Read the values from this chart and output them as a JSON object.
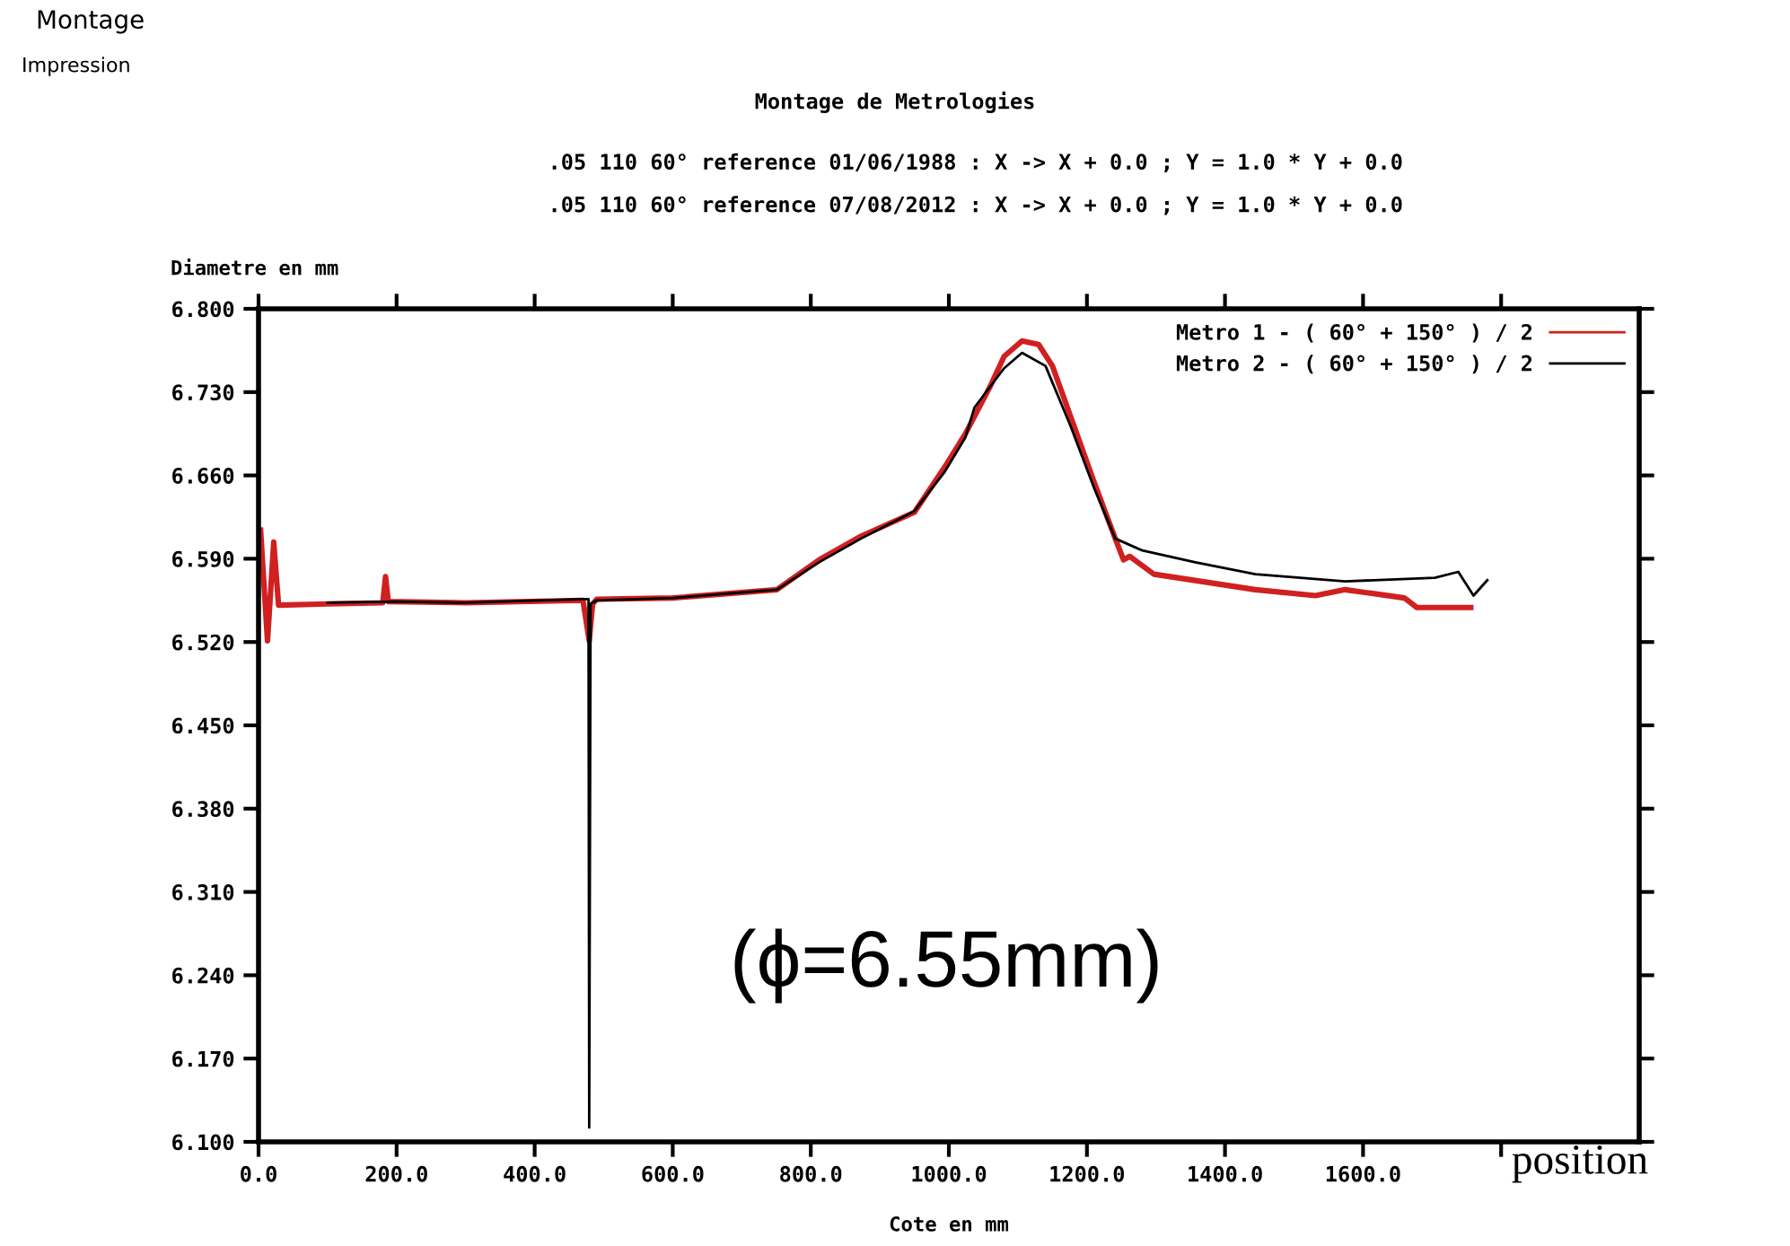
{
  "chart_data": {
    "type": "line",
    "title": "Montage de Metrologies",
    "subtitle": ".05 110 60° reference 01/06/1988 : X -> X + 0.0 ; Y = 1.0 * Y + 0.0\n\n.05 110 60° reference 07/08/2012 : X -> X + 0.0 ; Y = 1.0 * Y + 0.0",
    "xlabel": "Cote en mm",
    "ylabel": "Diametre en mm",
    "annotations": [
      "Montage",
      "Impression",
      "(ϕ=6.55mm)",
      "position"
    ],
    "xlim": [
      0,
      2000
    ],
    "xticks": [
      {
        "value": 0,
        "label": "0.0"
      },
      {
        "value": 200,
        "label": "200.0"
      },
      {
        "value": 400,
        "label": "400.0"
      },
      {
        "value": 600,
        "label": "600.0"
      },
      {
        "value": 800,
        "label": "800.0"
      },
      {
        "value": 1000,
        "label": "1000.0"
      },
      {
        "value": 1200,
        "label": "1200.0"
      },
      {
        "value": 1400,
        "label": "1400.0"
      },
      {
        "value": 1600,
        "label": "1600.0"
      },
      {
        "value": 1800,
        "label": null
      }
    ],
    "ylim": [
      6.1,
      6.8
    ],
    "yticks": [
      {
        "value": 6.1,
        "label": "6.100"
      },
      {
        "value": 6.17,
        "label": "6.170"
      },
      {
        "value": 6.24,
        "label": "6.240"
      },
      {
        "value": 6.31,
        "label": "6.310"
      },
      {
        "value": 6.38,
        "label": "6.380"
      },
      {
        "value": 6.45,
        "label": "6.450"
      },
      {
        "value": 6.52,
        "label": "6.520"
      },
      {
        "value": 6.59,
        "label": "6.590"
      },
      {
        "value": 6.66,
        "label": "6.660"
      },
      {
        "value": 6.73,
        "label": "6.730"
      },
      {
        "value": 6.8,
        "label": "6.800"
      }
    ],
    "legend": "top right",
    "line_style": "solid",
    "series": [
      {
        "name": "Metro 1 - ( 60° + 150° ) / 2",
        "color": "#d02020",
        "x": [
          3,
          13,
          22,
          29,
          100,
          180,
          184,
          188,
          300,
          470,
          479,
          484,
          490,
          600,
          751,
          812,
          873,
          950,
          994,
          1024,
          1060,
          1080,
          1106,
          1130,
          1150,
          1176,
          1210,
          1241,
          1253,
          1262,
          1297,
          1444,
          1531,
          1574,
          1660,
          1678,
          1756
        ],
        "values": [
          6.614,
          6.521,
          6.604,
          6.551,
          6.552,
          6.553,
          6.575,
          6.554,
          6.553,
          6.555,
          6.521,
          6.552,
          6.556,
          6.557,
          6.564,
          6.589,
          6.609,
          6.629,
          6.667,
          6.695,
          6.735,
          6.76,
          6.773,
          6.77,
          6.752,
          6.71,
          6.655,
          6.607,
          6.589,
          6.592,
          6.577,
          6.564,
          6.559,
          6.564,
          6.557,
          6.549,
          6.549
        ]
      },
      {
        "name": "Metro 2 - ( 60° + 150° ) / 2",
        "color": "#000000",
        "x": [
          100,
          200,
          300,
          470,
          478,
          479,
          481,
          490,
          600,
          751,
          812,
          873,
          950,
          994,
          1024,
          1037,
          1080,
          1106,
          1140,
          1176,
          1210,
          1241,
          1280,
          1357,
          1444,
          1574,
          1704,
          1738,
          1760,
          1780
        ],
        "values": [
          6.553,
          6.554,
          6.553,
          6.556,
          6.556,
          6.112,
          6.552,
          6.555,
          6.557,
          6.564,
          6.587,
          6.607,
          6.63,
          6.663,
          6.692,
          6.717,
          6.75,
          6.763,
          6.752,
          6.702,
          6.65,
          6.607,
          6.597,
          6.587,
          6.577,
          6.571,
          6.574,
          6.579,
          6.559,
          6.572
        ]
      }
    ]
  }
}
